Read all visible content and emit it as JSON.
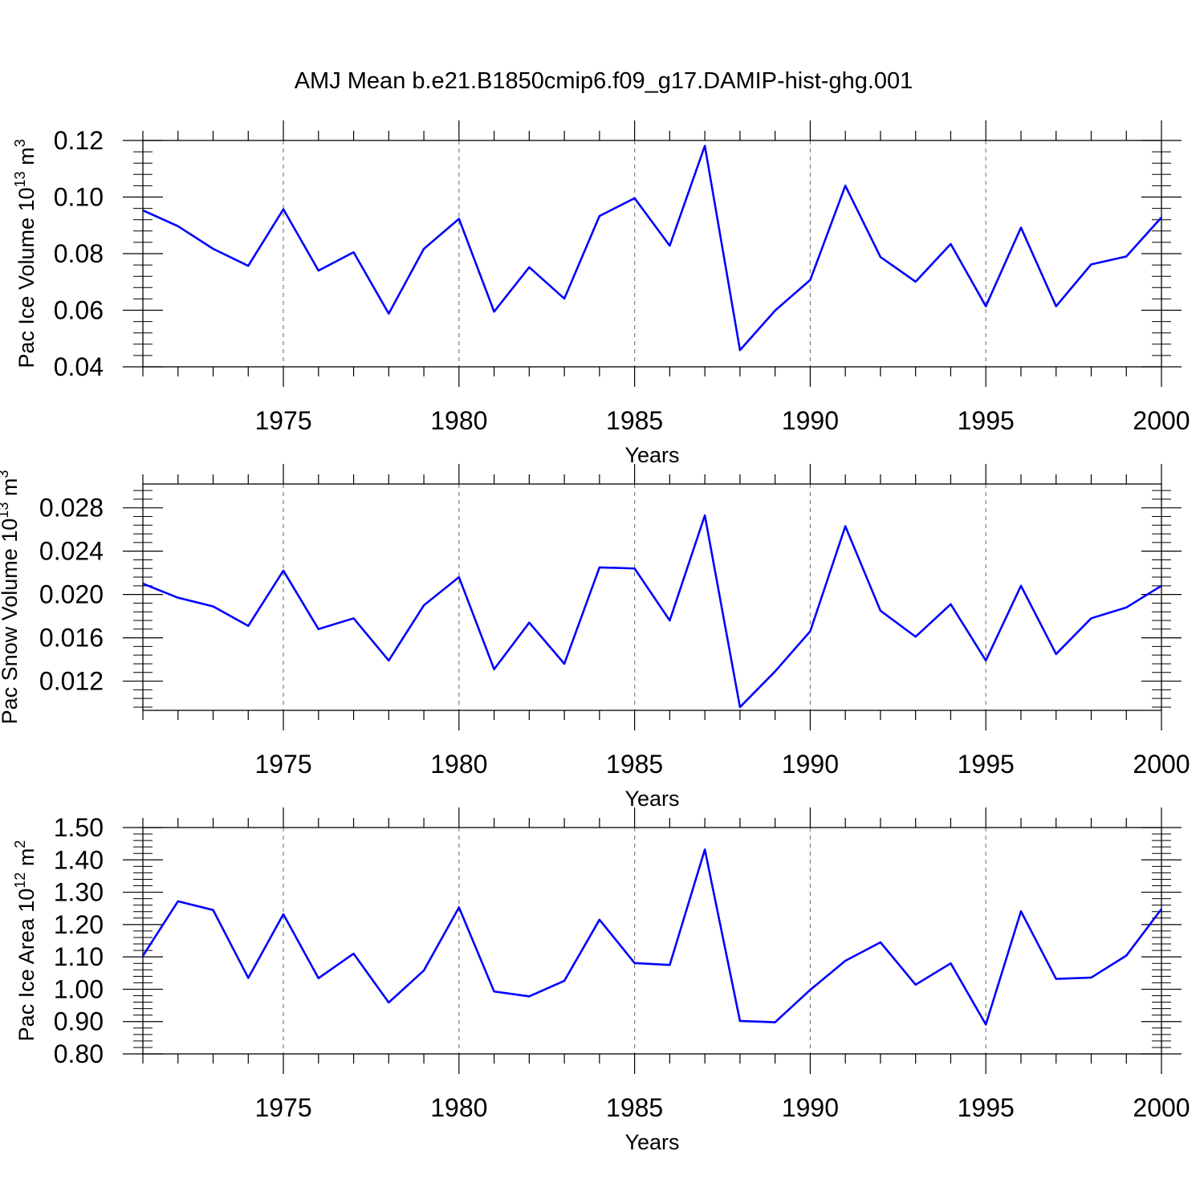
{
  "title": "AMJ Mean b.e21.B1850cmip6.f09_g17.DAMIP-hist-ghg.001",
  "colors": {
    "line": "#0000ff",
    "axis": "#000000",
    "grid": "#808080"
  },
  "chart_data": [
    {
      "type": "line",
      "ylabel": {
        "main": "Pac Ice Volume 10",
        "exp": "13",
        "unit": " m",
        "unitExp": "3"
      },
      "xlabel": "Years",
      "xlim": [
        1971,
        2000
      ],
      "ylim": [
        0.04,
        0.12
      ],
      "yticks": [
        0.04,
        0.06,
        0.08,
        0.1,
        0.12
      ],
      "ytick_labels": [
        "0.04",
        "0.06",
        "0.08",
        "0.10",
        "0.12"
      ],
      "xticks": [
        1975,
        1980,
        1985,
        1990,
        1995,
        2000
      ],
      "xtick_labels": [
        "1975",
        "1980",
        "1985",
        "1990",
        "1995",
        "2000"
      ],
      "grid": "vertical dashed at major x ticks",
      "x": [
        1971,
        1972,
        1973,
        1974,
        1975,
        1976,
        1977,
        1978,
        1979,
        1980,
        1981,
        1982,
        1983,
        1984,
        1985,
        1986,
        1987,
        1988,
        1989,
        1990,
        1991,
        1992,
        1993,
        1994,
        1995,
        1996,
        1997,
        1998,
        1999,
        2000
      ],
      "values": [
        0.0953,
        0.0897,
        0.0817,
        0.0757,
        0.0957,
        0.074,
        0.0805,
        0.0588,
        0.0817,
        0.0923,
        0.0595,
        0.0752,
        0.0641,
        0.0933,
        0.0996,
        0.0828,
        0.1181,
        0.0459,
        0.0599,
        0.0707,
        0.104,
        0.0788,
        0.0701,
        0.0834,
        0.0614,
        0.0892,
        0.0614,
        0.0762,
        0.079,
        0.0928
      ]
    },
    {
      "type": "line",
      "ylabel": {
        "main": "Pac Snow Volume 10",
        "exp": "13",
        "unit": " m",
        "unitExp": "3"
      },
      "xlabel": "Years",
      "xlim": [
        1971,
        2000
      ],
      "ylim": [
        0.0093,
        0.0302
      ],
      "yticks": [
        0.012,
        0.016,
        0.02,
        0.024,
        0.028
      ],
      "ytick_labels": [
        "0.012",
        "0.016",
        "0.020",
        "0.024",
        "0.028"
      ],
      "xticks": [
        1975,
        1980,
        1985,
        1990,
        1995,
        2000
      ],
      "xtick_labels": [
        "1975",
        "1980",
        "1985",
        "1990",
        "1995",
        "2000"
      ],
      "grid": "vertical dashed at major x ticks",
      "x": [
        1971,
        1972,
        1973,
        1974,
        1975,
        1976,
        1977,
        1978,
        1979,
        1980,
        1981,
        1982,
        1983,
        1984,
        1985,
        1986,
        1987,
        1988,
        1989,
        1990,
        1991,
        1992,
        1993,
        1994,
        1995,
        1996,
        1997,
        1998,
        1999,
        2000
      ],
      "values": [
        0.021,
        0.0197,
        0.0189,
        0.0171,
        0.0222,
        0.0168,
        0.0178,
        0.0139,
        0.019,
        0.0216,
        0.0131,
        0.0174,
        0.0136,
        0.0225,
        0.0224,
        0.0176,
        0.0273,
        0.0096,
        0.0129,
        0.0166,
        0.0263,
        0.0185,
        0.0161,
        0.0191,
        0.0139,
        0.0208,
        0.0145,
        0.0178,
        0.0188,
        0.0208
      ]
    },
    {
      "type": "line",
      "ylabel": {
        "main": "Pac Ice Area 10",
        "exp": "12",
        "unit": " m",
        "unitExp": "2"
      },
      "xlabel": "Years",
      "xlim": [
        1971,
        2000
      ],
      "ylim": [
        0.8,
        1.5
      ],
      "yticks": [
        0.8,
        0.9,
        1.0,
        1.1,
        1.2,
        1.3,
        1.4,
        1.5
      ],
      "ytick_labels": [
        "0.80",
        "0.90",
        "1.00",
        "1.10",
        "1.20",
        "1.30",
        "1.40",
        "1.50"
      ],
      "xticks": [
        1975,
        1980,
        1985,
        1990,
        1995,
        2000
      ],
      "xtick_labels": [
        "1975",
        "1980",
        "1985",
        "1990",
        "1995",
        "2000"
      ],
      "grid": "vertical dashed at major x ticks",
      "x": [
        1971,
        1972,
        1973,
        1974,
        1975,
        1976,
        1977,
        1978,
        1979,
        1980,
        1981,
        1982,
        1983,
        1984,
        1985,
        1986,
        1987,
        1988,
        1989,
        1990,
        1991,
        1992,
        1993,
        1994,
        1995,
        1996,
        1997,
        1998,
        1999,
        2000
      ],
      "values": [
        1.103,
        1.272,
        1.245,
        1.035,
        1.232,
        1.034,
        1.11,
        0.959,
        1.058,
        1.253,
        0.993,
        0.978,
        1.026,
        1.215,
        1.081,
        1.075,
        1.432,
        0.902,
        0.898,
        0.998,
        1.088,
        1.145,
        1.014,
        1.08,
        0.891,
        1.241,
        1.032,
        1.036,
        1.104,
        1.248
      ]
    }
  ]
}
